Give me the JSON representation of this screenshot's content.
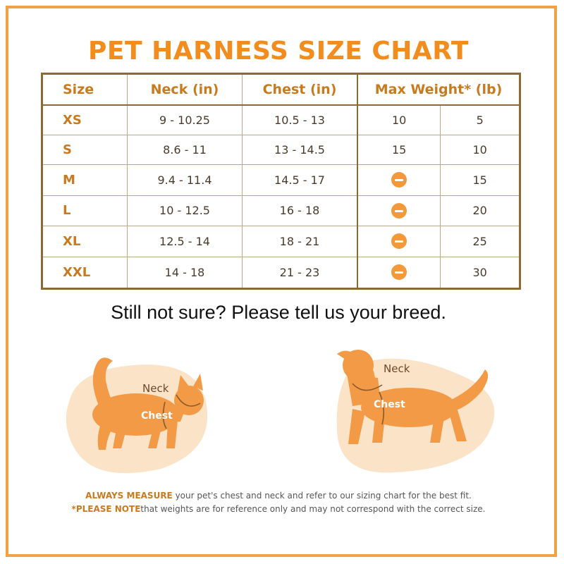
{
  "title": "PET HARNESS SIZE CHART",
  "table": {
    "headers": [
      "Size",
      "Neck (in)",
      "Chest (in)",
      "Max Weight* (lb)"
    ],
    "rows": [
      {
        "size": "XS",
        "neck": "9 - 10.25",
        "chest": "10.5 - 13",
        "w1": "10",
        "w2": "5"
      },
      {
        "size": "S",
        "neck": "8.6 - 11",
        "chest": "13 - 14.5",
        "w1": "15",
        "w2": "10"
      },
      {
        "size": "M",
        "neck": "9.4 - 11.4",
        "chest": "14.5 - 17",
        "w1": "",
        "w2": "15"
      },
      {
        "size": "L",
        "neck": "10 - 12.5",
        "chest": "16 - 18",
        "w1": "",
        "w2": "20"
      },
      {
        "size": "XL",
        "neck": "12.5 - 14",
        "chest": "18 - 21",
        "w1": "",
        "w2": "25"
      },
      {
        "size": "XXL",
        "neck": "14 - 18",
        "chest": "21 - 23",
        "w1": "",
        "w2": "30"
      }
    ]
  },
  "prompt": "Still not sure? Please tell us your breed.",
  "cat": {
    "neck_label": "Neck",
    "chest_label": "Chest"
  },
  "dog": {
    "neck_label": "Neck",
    "chest_label": "Chest"
  },
  "notes": {
    "line1_bold": "ALWAYS MEASURE",
    "line1_rest": " your pet's chest and neck and refer to our sizing chart for the best fit.",
    "line2_bold": "*PLEASE NOTE",
    "line2_rest": "that weights are for reference only and may not correspond with the correct size."
  },
  "colors": {
    "accent": "#f28c1c",
    "border": "#8a6a35",
    "blob": "#fbe3c8",
    "animal": "#f29a45"
  }
}
